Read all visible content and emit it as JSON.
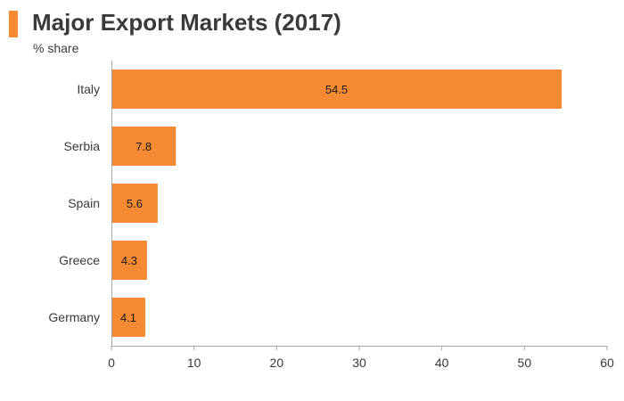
{
  "header": {
    "title": "Major Export Markets (2017)",
    "subtitle": "% share"
  },
  "colors": {
    "accent": "#f58a33",
    "bar": "#f58a33",
    "axis": "#a6a6a6"
  },
  "chart_data": {
    "type": "bar",
    "orientation": "horizontal",
    "title": "Major Export Markets (2017)",
    "subtitle": "% share",
    "xlabel": "",
    "ylabel": "",
    "categories": [
      "Italy",
      "Serbia",
      "Spain",
      "Greece",
      "Germany"
    ],
    "values": [
      54.5,
      7.8,
      5.6,
      4.3,
      4.1
    ],
    "xlim": [
      0,
      60
    ],
    "xticks": [
      0,
      10,
      20,
      30,
      40,
      50,
      60
    ],
    "grid": false,
    "legend": "none"
  }
}
